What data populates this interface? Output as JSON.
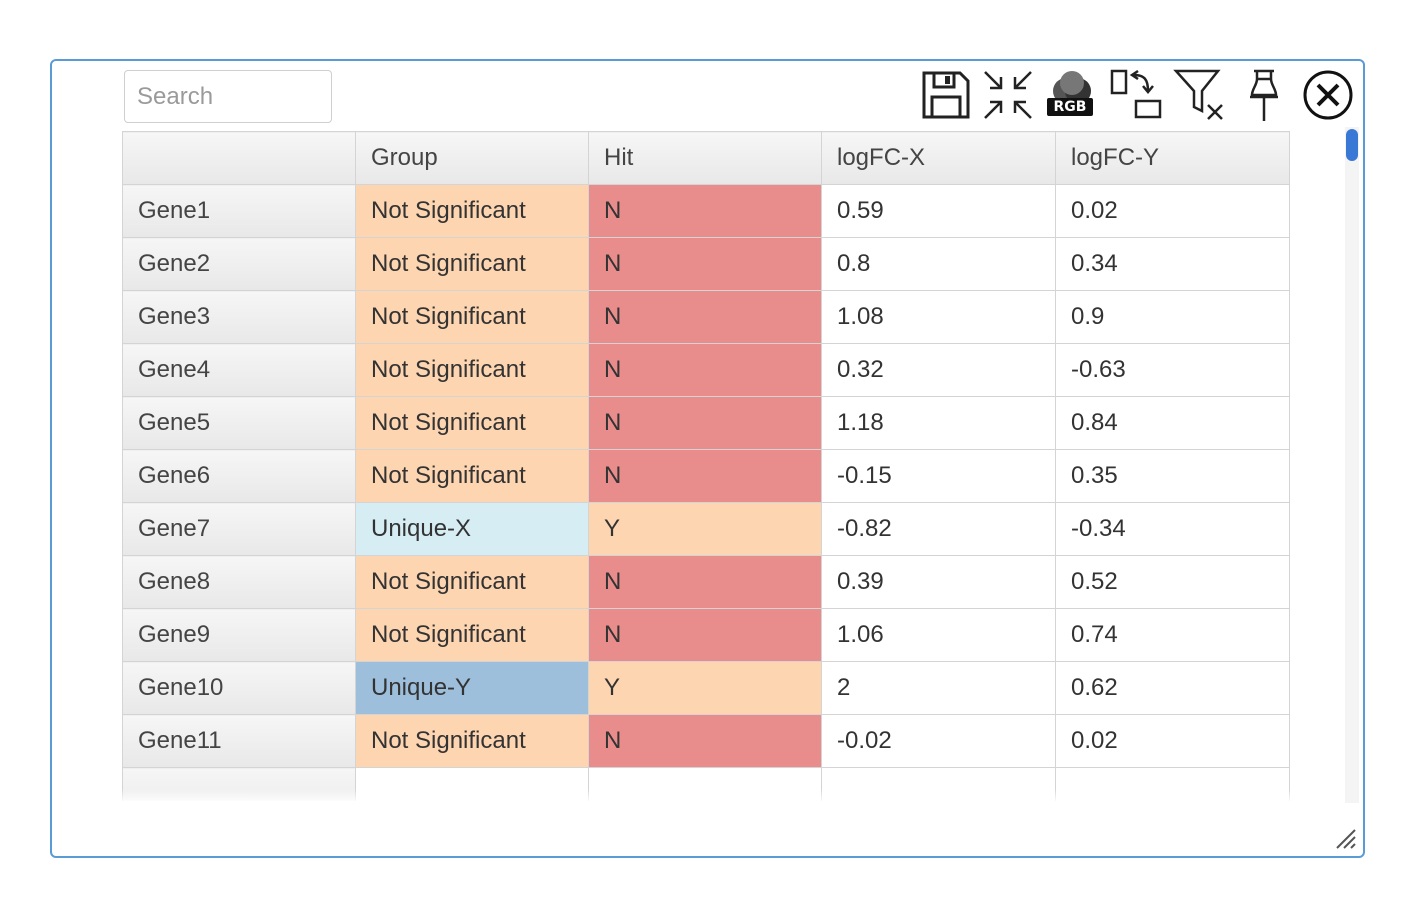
{
  "search": {
    "placeholder": "Search",
    "value": ""
  },
  "toolbar": {
    "icons": [
      "save-icon",
      "shrink-icon",
      "rgb-color-icon",
      "swap-layout-icon",
      "clear-filter-icon",
      "pin-icon",
      "close-icon"
    ],
    "rgb_label": "RGB"
  },
  "grid": {
    "columns": [
      "",
      "Group",
      "Hit",
      "logFC-X",
      "logFC-Y"
    ],
    "rows": [
      [
        "Gene1",
        "Not Significant",
        "N",
        "0.59",
        "0.02"
      ],
      [
        "Gene2",
        "Not Significant",
        "N",
        "0.8",
        "0.34"
      ],
      [
        "Gene3",
        "Not Significant",
        "N",
        "1.08",
        "0.9"
      ],
      [
        "Gene4",
        "Not Significant",
        "N",
        "0.32",
        "-0.63"
      ],
      [
        "Gene5",
        "Not Significant",
        "N",
        "1.18",
        "0.84"
      ],
      [
        "Gene6",
        "Not Significant",
        "N",
        "-0.15",
        "0.35"
      ],
      [
        "Gene7",
        "Unique-X",
        "Y",
        "-0.82",
        "-0.34"
      ],
      [
        "Gene8",
        "Not Significant",
        "N",
        "0.39",
        "0.52"
      ],
      [
        "Gene9",
        "Not Significant",
        "N",
        "1.06",
        "0.74"
      ],
      [
        "Gene10",
        "Unique-Y",
        "Y",
        "2",
        "0.62"
      ],
      [
        "Gene11",
        "Not Significant",
        "N",
        "-0.02",
        "0.02"
      ],
      [
        "",
        "",
        "",
        "",
        ""
      ]
    ],
    "group_colors": {
      "Not Significant": "#fdd5b1",
      "Unique-X": "#d6edf4",
      "Unique-Y": "#9dbfdc"
    },
    "hit_colors": {
      "N": "#e98c8c",
      "Y": "#fdd5b1"
    }
  },
  "colors": {
    "panel_border": "#5b9bd5",
    "scrollbar_thumb": "#3a78d6"
  }
}
